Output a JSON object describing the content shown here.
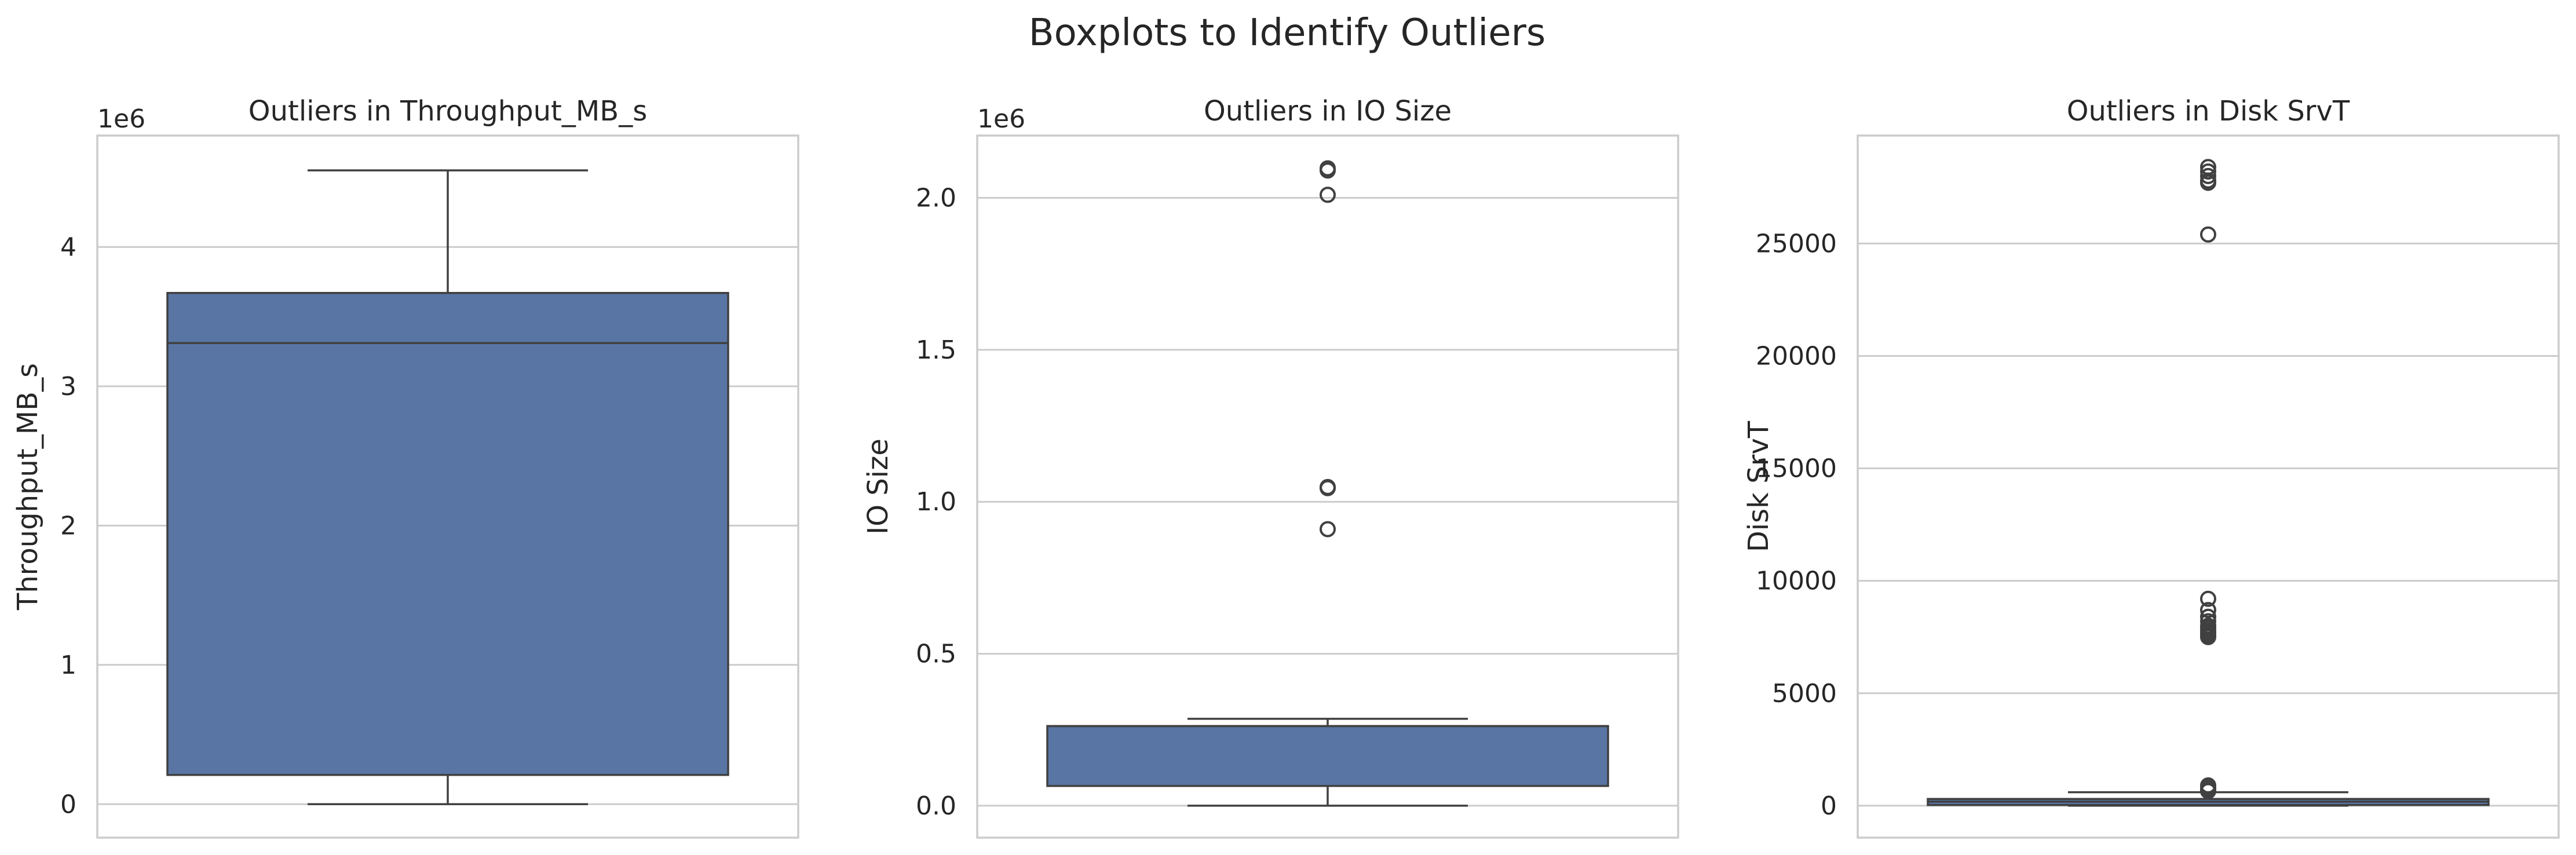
{
  "title": "Boxplots to Identify Outliers",
  "colors": {
    "box_fill": "#5975a4",
    "line": "#404040",
    "grid": "#cccccc",
    "spine": "#cccccc"
  },
  "chart_data": [
    {
      "type": "box",
      "title": "Outliers in Throughput_MB_s",
      "ylabel": "Throughput_MB_s",
      "offset_label": "1e6",
      "ylim": [
        -240000,
        4800000
      ],
      "yticks": [
        0,
        1000000,
        2000000,
        3000000,
        4000000
      ],
      "ytick_labels": [
        "0",
        "1",
        "2",
        "3",
        "4"
      ],
      "grid": true,
      "box": {
        "whisker_low": 0,
        "q1": 210000,
        "median": 3310000,
        "q3": 3670000,
        "whisker_high": 4550000
      },
      "outliers": []
    },
    {
      "type": "box",
      "title": "Outliers in IO Size",
      "ylabel": "IO Size",
      "offset_label": "1e6",
      "ylim": [
        -105000,
        2205000
      ],
      "yticks": [
        0,
        500000,
        1000000,
        1500000,
        2000000
      ],
      "ytick_labels": [
        "0.0",
        "0.5",
        "1.0",
        "1.5",
        "2.0"
      ],
      "grid": true,
      "box": {
        "whisker_low": 0,
        "q1": 65000,
        "median": 262000,
        "q3": 262000,
        "whisker_high": 286000
      },
      "outliers": [
        2097152,
        2090000,
        2010000,
        1048576,
        1045000,
        910000
      ]
    },
    {
      "type": "box",
      "title": "Outliers in Disk SrvT",
      "ylabel": "Disk SrvT",
      "offset_label": "",
      "ylim": [
        -1420,
        29800
      ],
      "yticks": [
        0,
        5000,
        10000,
        15000,
        20000,
        25000
      ],
      "ytick_labels": [
        "0",
        "5000",
        "10000",
        "15000",
        "20000",
        "25000"
      ],
      "grid": true,
      "box": {
        "whisker_low": 0,
        "q1": 30,
        "median": 180,
        "q3": 300,
        "whisker_high": 600
      },
      "outliers": [
        28400,
        28200,
        28000,
        27800,
        27700,
        25400,
        9200,
        8700,
        8400,
        8200,
        8000,
        7900,
        7800,
        7700,
        7600,
        7500,
        900,
        800,
        700,
        650
      ]
    }
  ]
}
